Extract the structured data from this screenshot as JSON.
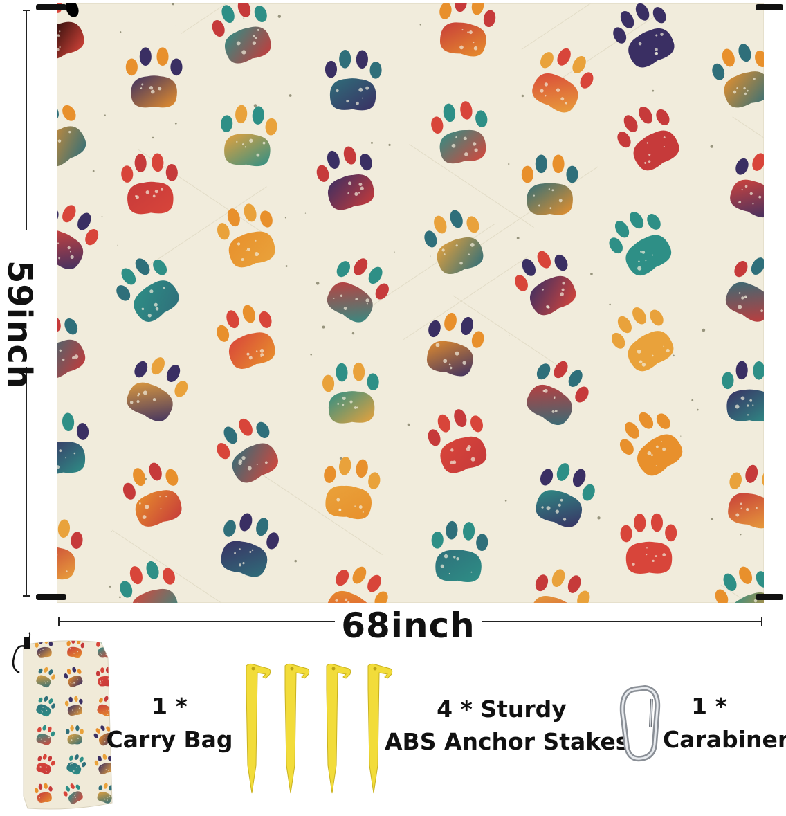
{
  "dimensions": {
    "height": "59inch",
    "width": "68inch"
  },
  "accessories": {
    "bag": {
      "qty": "1 *",
      "name": "Carry Bag"
    },
    "stakes": {
      "qty": "4 * Sturdy",
      "name": "ABS Anchor Stakes"
    },
    "carabiner": {
      "qty": "1 *",
      "name": "Carabiner"
    }
  },
  "colors": {
    "blanket_background": "#f1ecdc",
    "stake_yellow": "#f2dc3a",
    "paw_palette": [
      "#e8902c",
      "#d8453a",
      "#2f6f7a",
      "#3a2f63",
      "#c63a3a",
      "#2e8f86",
      "#e9a23b"
    ]
  },
  "icons": {
    "blanket": "paw-print-pattern",
    "bag": "drawstring-bag",
    "stakes": "tent-stake",
    "carabiner": "carabiner-clip"
  }
}
